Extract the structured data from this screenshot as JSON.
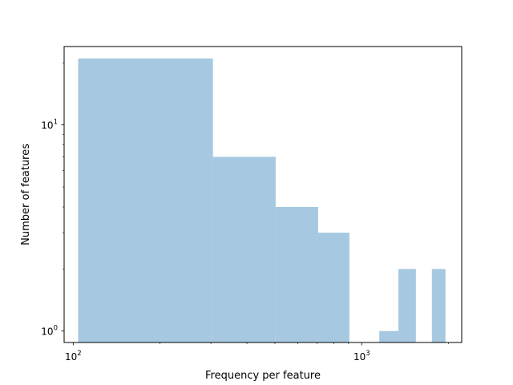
{
  "chart_data": {
    "type": "bar",
    "xlabel": "Frequency per feature",
    "ylabel": "Number of features",
    "x_scale": "log",
    "y_scale": "log",
    "xlim": [
      93,
      2220
    ],
    "ylim": [
      0.88,
      24
    ],
    "grid": false,
    "bar_color": "#a6c8e0",
    "bins": [
      {
        "x0": 104,
        "x1": 305,
        "count": 21
      },
      {
        "x0": 305,
        "x1": 503,
        "count": 7
      },
      {
        "x0": 503,
        "x1": 706,
        "count": 4
      },
      {
        "x0": 706,
        "x1": 906,
        "count": 3
      },
      {
        "x0": 1150,
        "x1": 1340,
        "count": 1
      },
      {
        "x0": 1340,
        "x1": 1540,
        "count": 2
      },
      {
        "x0": 1750,
        "x1": 1950,
        "count": 2
      }
    ],
    "x_major_ticks": [
      {
        "value": 100,
        "base": "10",
        "exp": "2"
      },
      {
        "value": 1000,
        "base": "10",
        "exp": "3"
      }
    ],
    "y_major_ticks": [
      {
        "value": 1,
        "base": "10",
        "exp": "0"
      },
      {
        "value": 10,
        "base": "10",
        "exp": "1"
      }
    ],
    "x_minor_ticks": [
      200,
      300,
      400,
      500,
      600,
      700,
      800,
      900,
      2000
    ],
    "y_minor_ticks": [
      2,
      3,
      4,
      5,
      6,
      7,
      8,
      9,
      20
    ]
  }
}
